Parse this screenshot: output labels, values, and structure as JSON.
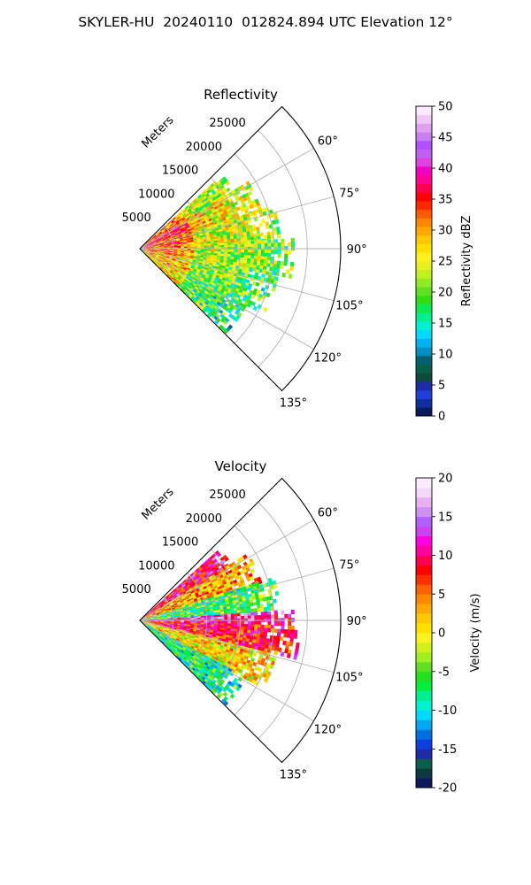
{
  "figure": {
    "title": "SKYLER-HU  20240110  012824.894 UTC Elevation 12°"
  },
  "chart_data": [
    {
      "type": "heatmap",
      "subtype": "polar-sector (PPI radar scan)",
      "title": "Reflectivity",
      "radial_label": "Meters",
      "radial_ticks": [
        "5000",
        "10000",
        "15000",
        "20000",
        "25000"
      ],
      "radial_range_m": [
        0,
        30000
      ],
      "azimuth_ticks": [
        "60°",
        "75°",
        "90°",
        "105°",
        "120°",
        "135°"
      ],
      "azimuth_range_deg": [
        45,
        135
      ],
      "grid": true,
      "colorbar": {
        "label": "Reflectivity dBZ",
        "range": [
          0,
          50
        ],
        "ticks": [
          "0",
          "5",
          "10",
          "15",
          "20",
          "25",
          "30",
          "35",
          "40",
          "45",
          "50"
        ],
        "colors": [
          "#0a1a5a",
          "#0f2ea0",
          "#1e3fd8",
          "#1f2aa8",
          "#0c4a3a",
          "#0a5f4a",
          "#006070",
          "#0090c0",
          "#00b0f0",
          "#00d8ff",
          "#00f0d0",
          "#00f090",
          "#10e850",
          "#30dd10",
          "#60e020",
          "#90ec20",
          "#c0f020",
          "#e8f020",
          "#fff020",
          "#ffe000",
          "#ffc800",
          "#ffa800",
          "#ff8800",
          "#ff5a00",
          "#ff2800",
          "#ff0000",
          "#ff0050",
          "#ff0090",
          "#f000c0",
          "#e040e0",
          "#c060f0",
          "#b050ff",
          "#c880f0",
          "#e0a0f0",
          "#f0c8f8",
          "#fbe8fd"
        ]
      },
      "field_description_bands": [
        {
          "from_az": 48,
          "to_az": 58,
          "max_range": 17000,
          "dominant_dbz": 27
        },
        {
          "from_az": 58,
          "to_az": 72,
          "max_range": 19000,
          "dominant_dbz": 30
        },
        {
          "from_az": 72,
          "to_az": 86,
          "max_range": 21000,
          "dominant_dbz": 28
        },
        {
          "from_az": 86,
          "to_az": 100,
          "max_range": 23000,
          "dominant_dbz": 26
        },
        {
          "from_az": 100,
          "to_az": 118,
          "max_range": 21000,
          "dominant_dbz": 24
        },
        {
          "from_az": 118,
          "to_az": 134,
          "max_range": 18000,
          "dominant_dbz": 22
        }
      ]
    },
    {
      "type": "heatmap",
      "subtype": "polar-sector (PPI radar scan)",
      "title": "Velocity",
      "radial_label": "Meters",
      "radial_ticks": [
        "5000",
        "10000",
        "15000",
        "20000",
        "25000"
      ],
      "radial_range_m": [
        0,
        30000
      ],
      "azimuth_ticks": [
        "60°",
        "75°",
        "90°",
        "105°",
        "120°",
        "135°"
      ],
      "azimuth_range_deg": [
        45,
        135
      ],
      "grid": true,
      "colorbar": {
        "label": "Velocity (m/s)",
        "range": [
          -20,
          20
        ],
        "ticks": [
          "-20",
          "-15",
          "-10",
          "-5",
          "0",
          "5",
          "10",
          "15",
          "20"
        ],
        "colors": [
          "#0a1a5a",
          "#0c3a40",
          "#0a5f4a",
          "#1f2aa8",
          "#0f3ee0",
          "#0070e0",
          "#00a8f0",
          "#00d8ff",
          "#00f0d0",
          "#00f090",
          "#00ee40",
          "#20e020",
          "#60e020",
          "#a0f020",
          "#d0f020",
          "#fff020",
          "#ffe000",
          "#ffc800",
          "#ffa800",
          "#ff8800",
          "#ff6000",
          "#ff3000",
          "#ff0000",
          "#ff0050",
          "#ff00a0",
          "#ff00e0",
          "#d040f0",
          "#b060ff",
          "#d090f0",
          "#e8b0f0",
          "#f6d8fa",
          "#fbecfd"
        ]
      },
      "field_description_bands": [
        {
          "from_az": 48,
          "to_az": 58,
          "max_range": 16000,
          "dominant_ms": 10
        },
        {
          "from_az": 58,
          "to_az": 72,
          "max_range": 19000,
          "dominant_ms": 3
        },
        {
          "from_az": 72,
          "to_az": 86,
          "max_range": 21000,
          "dominant_ms": -6
        },
        {
          "from_az": 86,
          "to_az": 92,
          "max_range": 23000,
          "dominant_ms": 12
        },
        {
          "from_az": 92,
          "to_az": 104,
          "max_range": 24000,
          "dominant_ms": 8
        },
        {
          "from_az": 104,
          "to_az": 118,
          "max_range": 21000,
          "dominant_ms": 1
        },
        {
          "from_az": 118,
          "to_az": 134,
          "max_range": 18000,
          "dominant_ms": -8
        }
      ]
    }
  ]
}
